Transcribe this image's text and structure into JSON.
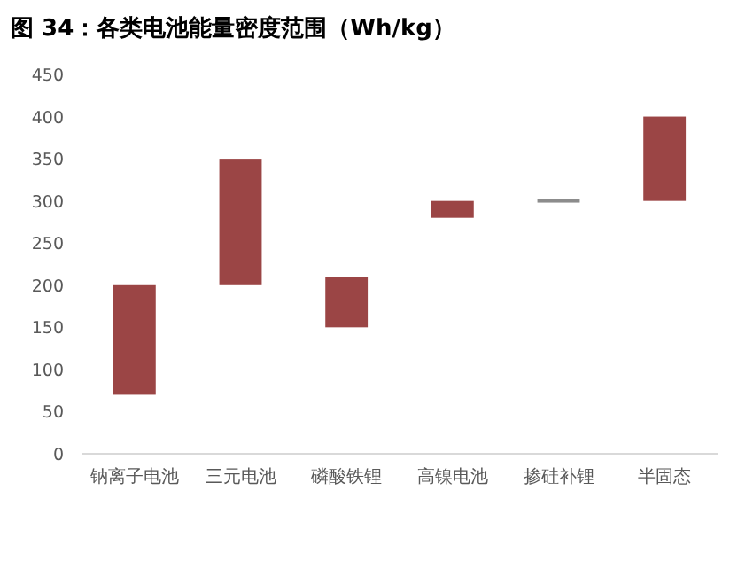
{
  "chart_data": {
    "type": "bar",
    "title": "图 34：各类电池能量密度范围（Wh/kg）",
    "categories": [
      "钠离子电池",
      "三元电池",
      "磷酸铁锂",
      "高镍电池",
      "掺硅补锂",
      "半固态"
    ],
    "base": [
      70,
      200,
      150,
      280,
      298,
      300
    ],
    "values": [
      130,
      150,
      60,
      20,
      4,
      100
    ],
    "colors": [
      "#9b4545",
      "#9b4545",
      "#9b4545",
      "#9b4545",
      "#8c8c8c",
      "#9b4545"
    ],
    "ylim": [
      0,
      450
    ],
    "yticks": [
      0,
      50,
      100,
      150,
      200,
      250,
      300,
      350,
      400,
      450
    ],
    "grid": false
  }
}
